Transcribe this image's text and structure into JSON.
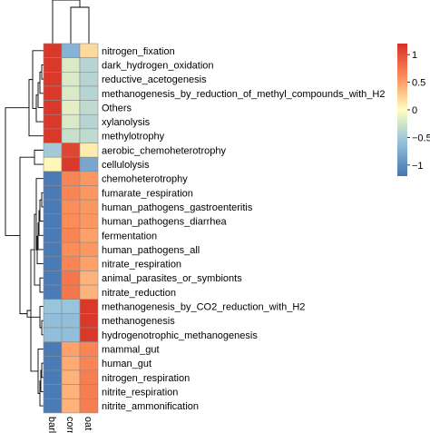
{
  "chart_data": {
    "type": "heatmap",
    "columns": [
      "barley",
      "corn",
      "oat"
    ],
    "rows": [
      "nitrogen_fixation",
      "dark_hydrogen_oxidation",
      "reductive_acetogenesis",
      "methanogenesis_by_reduction_of_methyl_compounds_with_H2",
      "Others",
      "xylanolysis",
      "methylotrophy",
      "aerobic_chemoheterotrophy",
      "cellulolysis",
      "chemoheterotrophy",
      "fumarate_respiration",
      "human_pathogens_gastroenteritis",
      "human_pathogens_diarrhea",
      "fermentation",
      "human_pathogens_all",
      "nitrate_respiration",
      "animal_parasites_or_symbionts",
      "nitrate_reduction",
      "methanogenesis_by_CO2_reduction_with_H2",
      "methanogenesis",
      "hydrogenotrophic_methanogenesis",
      "mammal_gut",
      "human_gut",
      "nitrogen_respiration",
      "nitrite_respiration",
      "nitrite_ammonification"
    ],
    "values": [
      [
        1.15,
        -0.7,
        0.2
      ],
      [
        1.15,
        -0.2,
        -0.4
      ],
      [
        1.15,
        -0.2,
        -0.4
      ],
      [
        1.15,
        -0.2,
        -0.4
      ],
      [
        1.15,
        -0.15,
        -0.35
      ],
      [
        1.15,
        -0.2,
        -0.4
      ],
      [
        1.15,
        -0.3,
        -0.35
      ],
      [
        -0.5,
        1.05,
        0.1
      ],
      [
        0.05,
        1.15,
        -0.8
      ],
      [
        -1.15,
        0.65,
        0.55
      ],
      [
        -1.15,
        0.65,
        0.55
      ],
      [
        -1.15,
        0.6,
        0.55
      ],
      [
        -1.15,
        0.6,
        0.55
      ],
      [
        -1.15,
        0.65,
        0.5
      ],
      [
        -1.15,
        0.6,
        0.55
      ],
      [
        -1.15,
        0.65,
        0.5
      ],
      [
        -1.15,
        0.75,
        0.4
      ],
      [
        -1.15,
        0.75,
        0.4
      ],
      [
        -0.55,
        -0.55,
        1.15
      ],
      [
        -0.6,
        -0.6,
        1.15
      ],
      [
        -0.6,
        -0.6,
        1.15
      ],
      [
        -1.15,
        0.5,
        0.65
      ],
      [
        -1.15,
        0.45,
        0.65
      ],
      [
        -1.15,
        0.4,
        0.7
      ],
      [
        -1.15,
        0.4,
        0.7
      ],
      [
        -1.15,
        0.4,
        0.7
      ]
    ],
    "colorbar": {
      "ticks": [
        1,
        0.5,
        0,
        -0.5,
        -1
      ],
      "tick_labels": [
        "1",
        "0.5",
        "0",
        "−0.5",
        "−1"
      ],
      "range": [
        -1.2,
        1.2
      ],
      "colors": {
        "low": "#4575b4",
        "mid": "#ffffbf",
        "high": "#d73027"
      }
    },
    "legend_position": "right",
    "row_dendrogram": true,
    "column_dendrogram": true
  }
}
